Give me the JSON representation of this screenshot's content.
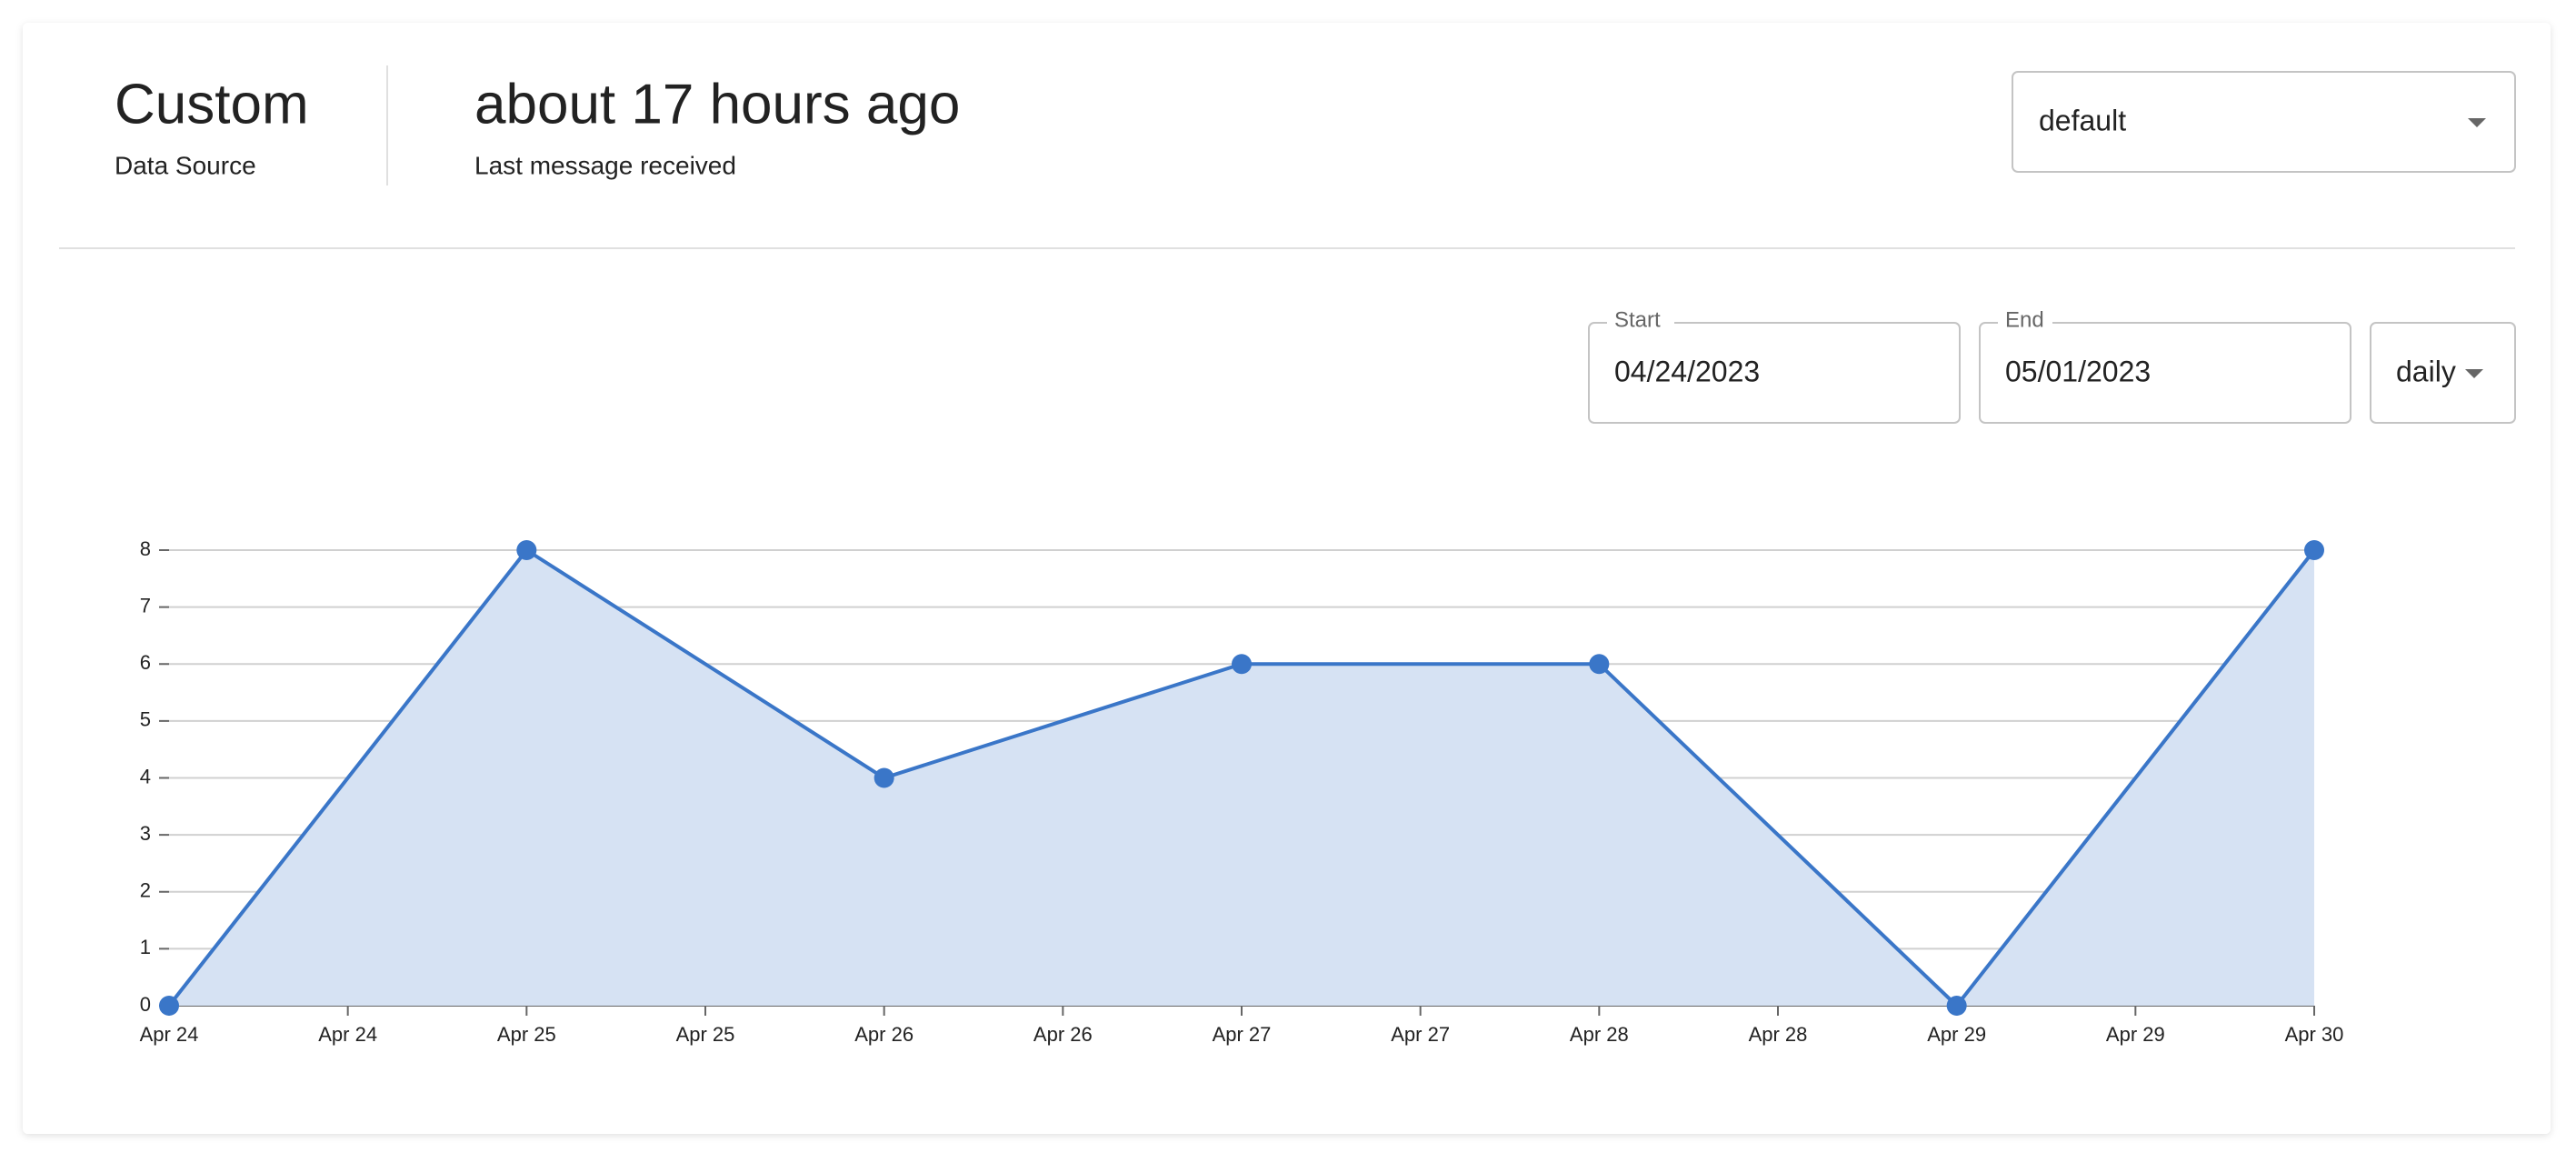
{
  "header": {
    "title": "Custom",
    "subtitle": "Data Source",
    "last_message": "about 17 hours ago",
    "last_message_caption": "Last message received",
    "select": "default"
  },
  "filters": {
    "start_label": "Start",
    "start_value": "04/24/2023",
    "end_label": "End",
    "end_value": "05/01/2023",
    "interval": "daily"
  },
  "chart_data": {
    "type": "area",
    "x": [
      "Apr 24",
      "Apr 25",
      "Apr 26",
      "Apr 27",
      "Apr 28",
      "Apr 29",
      "Apr 30"
    ],
    "x_tick_labels": [
      "Apr 24",
      "Apr 24",
      "Apr 25",
      "Apr 25",
      "Apr 26",
      "Apr 26",
      "Apr 27",
      "Apr 27",
      "Apr 28",
      "Apr 28",
      "Apr 29",
      "Apr 29",
      "Apr 30"
    ],
    "series": [
      {
        "color": "#3a76c8",
        "fill": "#d6e2f3",
        "values": [
          0,
          8,
          4,
          6,
          6,
          0,
          8
        ]
      }
    ],
    "ylim": [
      0,
      8
    ],
    "yticks": [
      0,
      1,
      2,
      3,
      4,
      5,
      6,
      7,
      8
    ],
    "grid": true
  }
}
